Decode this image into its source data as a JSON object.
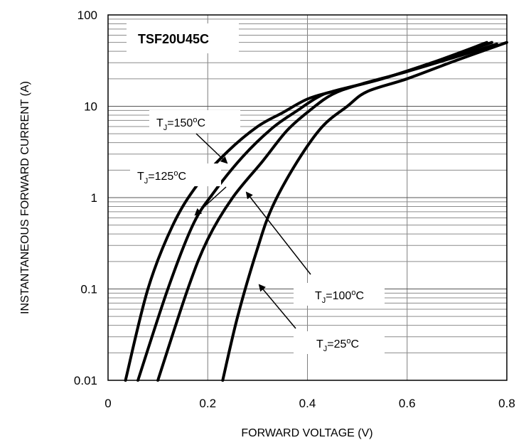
{
  "chart_data": {
    "type": "line",
    "title": "TSF20U45C",
    "xlabel": "FORWARD VOLTAGE (V)",
    "ylabel": "INSTANTANEOUS FORWARD CURRENT (A)",
    "xlim": [
      0,
      0.8
    ],
    "ylim": [
      0.01,
      100
    ],
    "yscale": "log",
    "x_ticks": [
      "0",
      "0.2",
      "0.4",
      "0.6",
      "0.8"
    ],
    "y_ticks": [
      "0.01",
      "0.1",
      "1",
      "10",
      "100"
    ],
    "grid": true,
    "series": [
      {
        "label": {
          "sub": "J",
          "value": "=150",
          "unit": "C"
        },
        "points": [
          [
            0.035,
            0.01
          ],
          [
            0.08,
            0.1
          ],
          [
            0.13,
            0.5
          ],
          [
            0.18,
            1.4
          ],
          [
            0.24,
            3.2
          ],
          [
            0.3,
            6.0
          ],
          [
            0.35,
            8.5
          ],
          [
            0.4,
            12
          ],
          [
            0.45,
            14.5
          ],
          [
            0.55,
            20
          ],
          [
            0.65,
            30
          ],
          [
            0.76,
            50
          ]
        ]
      },
      {
        "label": {
          "sub": "J",
          "value": "=125",
          "unit": "C"
        },
        "points": [
          [
            0.06,
            0.01
          ],
          [
            0.12,
            0.1
          ],
          [
            0.17,
            0.5
          ],
          [
            0.21,
            1.1
          ],
          [
            0.27,
            2.8
          ],
          [
            0.33,
            5.8
          ],
          [
            0.38,
            9
          ],
          [
            0.42,
            12.5
          ],
          [
            0.45,
            14.5
          ],
          [
            0.55,
            20
          ],
          [
            0.65,
            30
          ],
          [
            0.77,
            50
          ]
        ]
      },
      {
        "label": {
          "sub": "J",
          "value": "=100",
          "unit": "C"
        },
        "points": [
          [
            0.1,
            0.01
          ],
          [
            0.16,
            0.1
          ],
          [
            0.2,
            0.35
          ],
          [
            0.25,
            1.0
          ],
          [
            0.31,
            2.5
          ],
          [
            0.36,
            5.5
          ],
          [
            0.41,
            9.5
          ],
          [
            0.45,
            13.5
          ],
          [
            0.5,
            17
          ],
          [
            0.6,
            24
          ],
          [
            0.7,
            35
          ],
          [
            0.78,
            48
          ]
        ]
      },
      {
        "label": {
          "sub": "J",
          "value": "=25",
          "unit": "C"
        },
        "points": [
          [
            0.23,
            0.01
          ],
          [
            0.26,
            0.05
          ],
          [
            0.3,
            0.28
          ],
          [
            0.33,
            0.8
          ],
          [
            0.38,
            2.5
          ],
          [
            0.43,
            6.0
          ],
          [
            0.48,
            10
          ],
          [
            0.52,
            14.5
          ],
          [
            0.6,
            20
          ],
          [
            0.7,
            32
          ],
          [
            0.8,
            50
          ]
        ]
      }
    ]
  }
}
